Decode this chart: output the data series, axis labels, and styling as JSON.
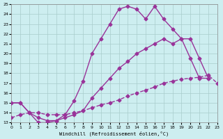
{
  "bg_color": "#cdeef0",
  "line_color": "#993399",
  "marker": "D",
  "marker_size": 2.5,
  "linewidth": 1.0,
  "xlabel": "Windchill (Refroidissement éolien,°C)",
  "xlim": [
    0,
    23
  ],
  "ylim": [
    13,
    25
  ],
  "yticks": [
    13,
    14,
    15,
    16,
    17,
    18,
    19,
    20,
    21,
    22,
    23,
    24,
    25
  ],
  "xticks": [
    0,
    1,
    2,
    3,
    4,
    5,
    6,
    7,
    8,
    9,
    10,
    11,
    12,
    13,
    14,
    15,
    16,
    17,
    18,
    19,
    20,
    21,
    22,
    23
  ],
  "series1_x": [
    0,
    1,
    2,
    3,
    4,
    5,
    6,
    7,
    8,
    9,
    10,
    11,
    12,
    13,
    14,
    15,
    16,
    17,
    18,
    19,
    20,
    21,
    22
  ],
  "series1_y": [
    15.0,
    15.0,
    14.0,
    13.0,
    13.0,
    13.2,
    13.8,
    15.2,
    17.2,
    20.0,
    21.5,
    23.0,
    24.5,
    24.8,
    24.5,
    23.5,
    24.8,
    23.5,
    22.5,
    21.5,
    19.5,
    17.5,
    17.5
  ],
  "series2_x": [
    0,
    1,
    2,
    3,
    4,
    5,
    6,
    7,
    8,
    9,
    10,
    11,
    12,
    13,
    14,
    15,
    16,
    17,
    18,
    19,
    20,
    21,
    22
  ],
  "series2_y": [
    15.0,
    15.0,
    14.0,
    13.5,
    13.2,
    13.2,
    13.5,
    13.8,
    14.2,
    15.5,
    16.5,
    17.5,
    18.5,
    19.2,
    20.0,
    20.5,
    21.0,
    21.5,
    21.0,
    21.5,
    21.5,
    19.5,
    17.5
  ],
  "series3_x": [
    0,
    1,
    2,
    3,
    4,
    5,
    6,
    7,
    8,
    9,
    10,
    11,
    12,
    13,
    14,
    15,
    16,
    17,
    18,
    19,
    20,
    21,
    22,
    23
  ],
  "series3_y": [
    13.5,
    13.8,
    14.0,
    14.0,
    13.8,
    13.8,
    13.8,
    14.0,
    14.2,
    14.5,
    14.8,
    15.0,
    15.3,
    15.7,
    16.0,
    16.3,
    16.6,
    17.0,
    17.2,
    17.4,
    17.5,
    17.6,
    17.8,
    17.0
  ]
}
